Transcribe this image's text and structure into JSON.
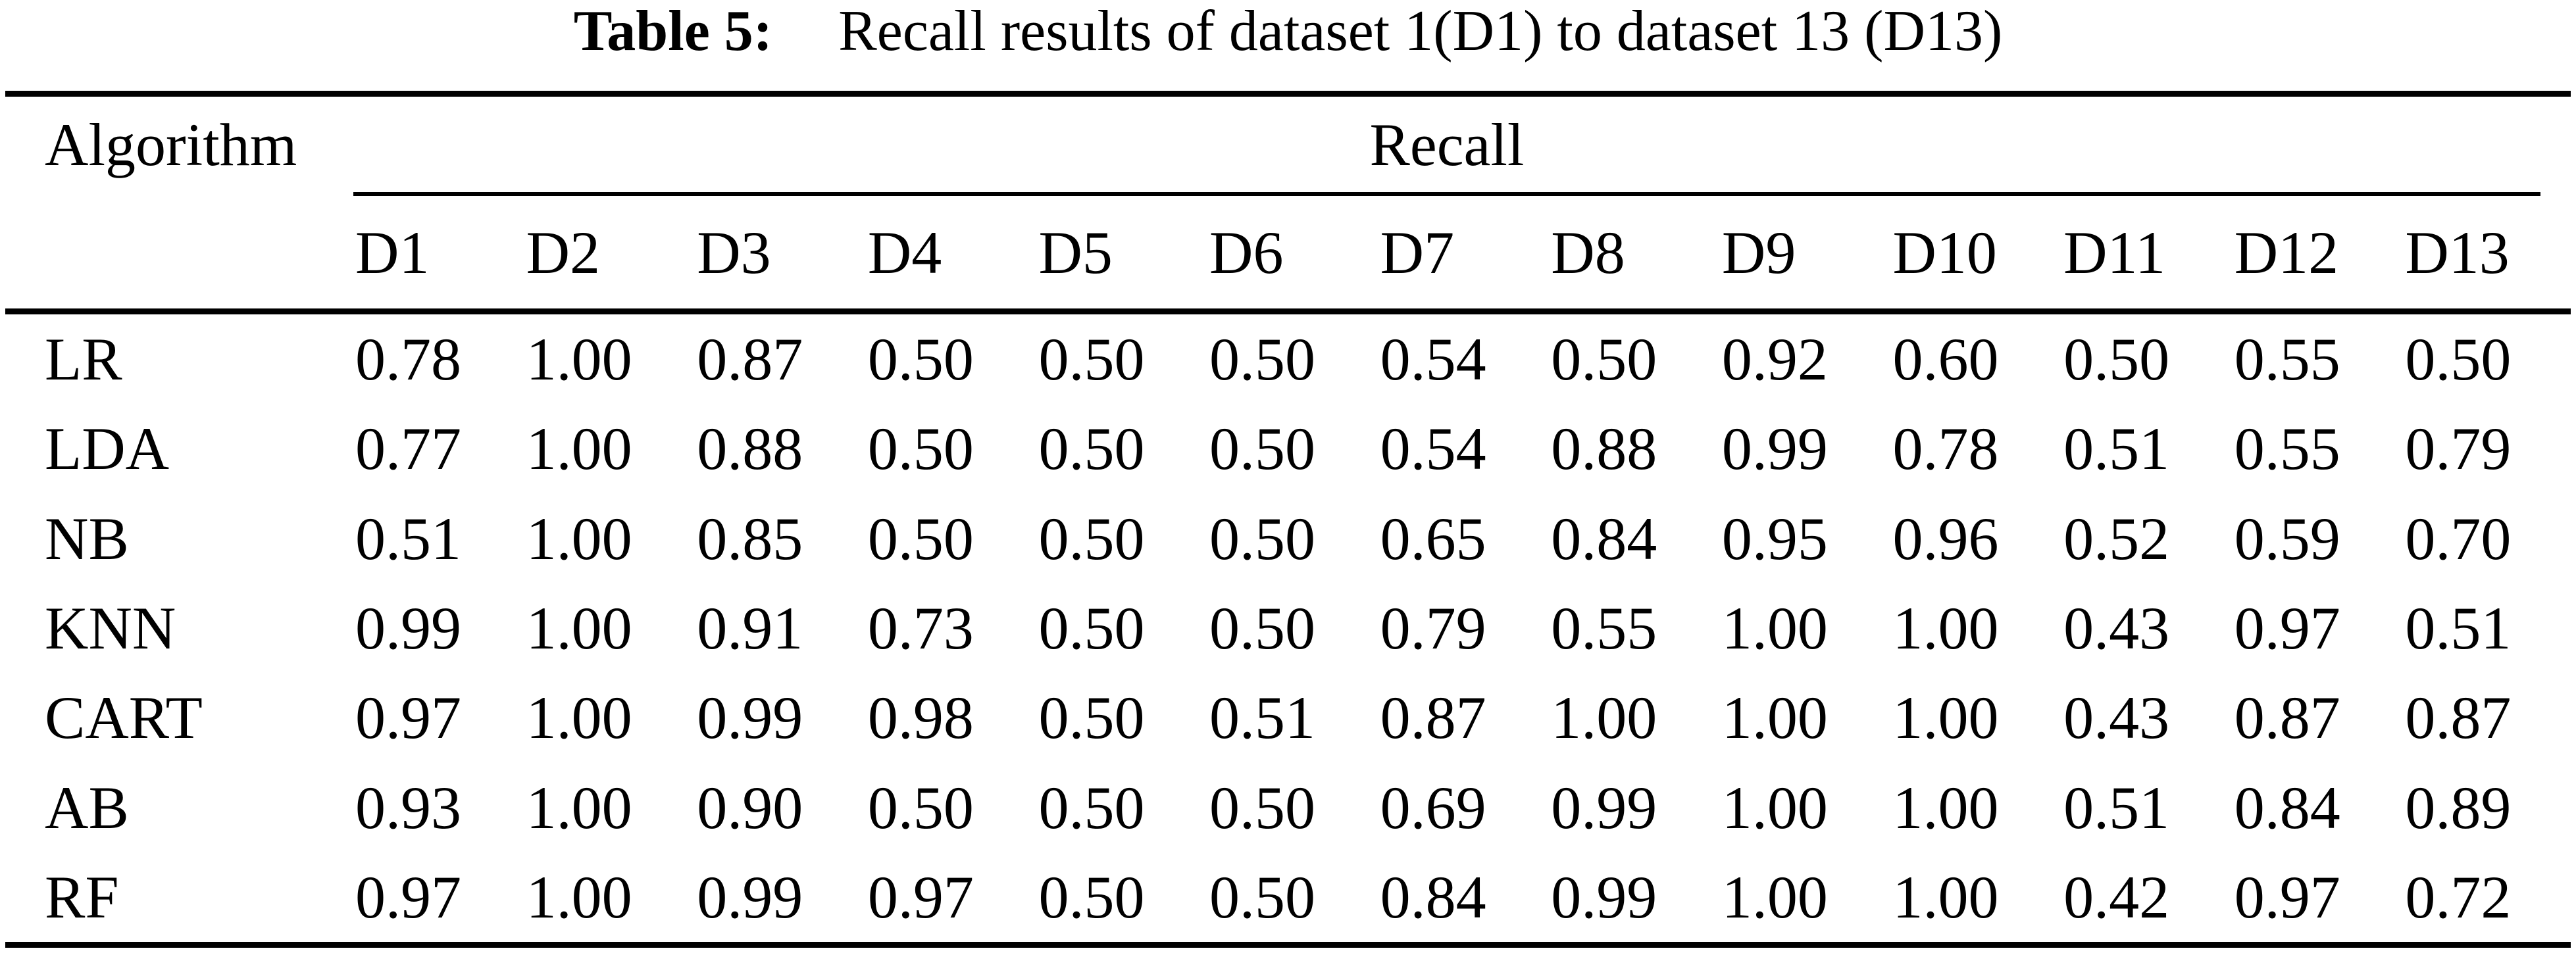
{
  "caption": {
    "label": "Table 5:",
    "text": "Recall results of dataset 1(D1) to dataset 13 (D13)"
  },
  "table": {
    "col1_header": "Algorithm",
    "group_header": "Recall",
    "dataset_headers": [
      "D1",
      "D2",
      "D3",
      "D4",
      "D5",
      "D6",
      "D7",
      "D8",
      "D9",
      "D10",
      "D11",
      "D12",
      "D13"
    ],
    "rows": [
      {
        "algorithm": "LR",
        "values": [
          "0.78",
          "1.00",
          "0.87",
          "0.50",
          "0.50",
          "0.50",
          "0.54",
          "0.50",
          "0.92",
          "0.60",
          "0.50",
          "0.55",
          "0.50"
        ]
      },
      {
        "algorithm": "LDA",
        "values": [
          "0.77",
          "1.00",
          "0.88",
          "0.50",
          "0.50",
          "0.50",
          "0.54",
          "0.88",
          "0.99",
          "0.78",
          "0.51",
          "0.55",
          "0.79"
        ]
      },
      {
        "algorithm": "NB",
        "values": [
          "0.51",
          "1.00",
          "0.85",
          "0.50",
          "0.50",
          "0.50",
          "0.65",
          "0.84",
          "0.95",
          "0.96",
          "0.52",
          "0.59",
          "0.70"
        ]
      },
      {
        "algorithm": "KNN",
        "values": [
          "0.99",
          "1.00",
          "0.91",
          "0.73",
          "0.50",
          "0.50",
          "0.79",
          "0.55",
          "1.00",
          "1.00",
          "0.43",
          "0.97",
          "0.51"
        ]
      },
      {
        "algorithm": "CART",
        "values": [
          "0.97",
          "1.00",
          "0.99",
          "0.98",
          "0.50",
          "0.51",
          "0.87",
          "1.00",
          "1.00",
          "1.00",
          "0.43",
          "0.87",
          "0.87"
        ]
      },
      {
        "algorithm": "AB",
        "values": [
          "0.93",
          "1.00",
          "0.90",
          "0.50",
          "0.50",
          "0.50",
          "0.69",
          "0.99",
          "1.00",
          "1.00",
          "0.51",
          "0.84",
          "0.89"
        ]
      },
      {
        "algorithm": "RF",
        "values": [
          "0.97",
          "1.00",
          "0.99",
          "0.97",
          "0.50",
          "0.50",
          "0.84",
          "0.99",
          "1.00",
          "1.00",
          "0.42",
          "0.97",
          "0.72"
        ]
      }
    ],
    "colors": {
      "text": "#000000",
      "background": "#ffffff",
      "rule": "#000000"
    }
  }
}
